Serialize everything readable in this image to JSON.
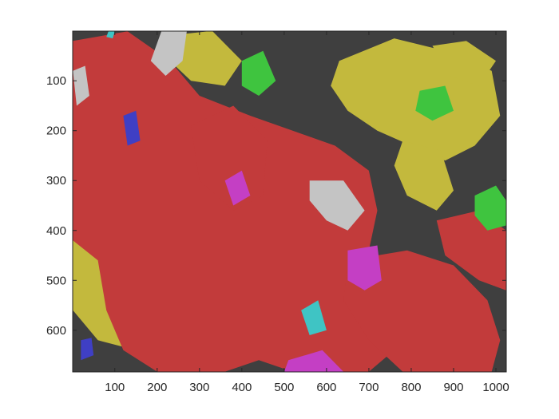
{
  "chart_data": {
    "type": "heatmap",
    "title": "",
    "xlabel": "",
    "ylabel": "",
    "xlim": [
      0.5,
      1024.5
    ],
    "ylim": [
      0.5,
      683.5
    ],
    "y_reversed": true,
    "x_ticks": [
      100,
      200,
      300,
      400,
      500,
      600,
      700,
      800,
      900,
      1000
    ],
    "y_ticks": [
      100,
      200,
      300,
      400,
      500,
      600
    ],
    "x_tick_labels": [
      "100",
      "200",
      "300",
      "400",
      "500",
      "600",
      "700",
      "800",
      "900",
      "1000"
    ],
    "y_tick_labels": [
      "100",
      "200",
      "300",
      "400",
      "500",
      "600"
    ],
    "grid": false,
    "legend": "none",
    "cluster_colors": {
      "dark_gray": "#3f3f3f",
      "red": "#c23b3b",
      "olive_yellow": "#c3b93d",
      "green": "#3fc43f",
      "light_gray": "#c4c4c4",
      "magenta": "#c43fc4",
      "cyan": "#3fc4c4",
      "blue": "#3f3fc4"
    },
    "regions": [
      {
        "color": "dark_gray",
        "points": [
          [
            1,
            1
          ],
          [
            1024,
            1
          ],
          [
            1024,
            683
          ],
          [
            1,
            683
          ]
        ]
      },
      {
        "color": "olive_yellow",
        "points": [
          [
            630,
            60
          ],
          [
            760,
            15
          ],
          [
            880,
            40
          ],
          [
            990,
            80
          ],
          [
            1010,
            170
          ],
          [
            950,
            230
          ],
          [
            880,
            260
          ],
          [
            800,
            230
          ],
          [
            720,
            200
          ],
          [
            650,
            160
          ],
          [
            610,
            110
          ]
        ]
      },
      {
        "color": "olive_yellow",
        "points": [
          [
            780,
            220
          ],
          [
            870,
            240
          ],
          [
            900,
            320
          ],
          [
            860,
            360
          ],
          [
            790,
            330
          ],
          [
            760,
            270
          ]
        ]
      },
      {
        "color": "olive_yellow",
        "points": [
          [
            220,
            10
          ],
          [
            330,
            0
          ],
          [
            400,
            60
          ],
          [
            360,
            110
          ],
          [
            280,
            100
          ],
          [
            230,
            60
          ]
        ]
      },
      {
        "color": "olive_yellow",
        "points": [
          [
            1,
            280
          ],
          [
            120,
            300
          ],
          [
            190,
            360
          ],
          [
            260,
            420
          ],
          [
            270,
            520
          ],
          [
            230,
            600
          ],
          [
            150,
            640
          ],
          [
            60,
            620
          ],
          [
            1,
            560
          ]
        ]
      },
      {
        "color": "olive_yellow",
        "points": [
          [
            850,
            30
          ],
          [
            930,
            20
          ],
          [
            1000,
            60
          ],
          [
            960,
            110
          ],
          [
            890,
            90
          ]
        ]
      },
      {
        "color": "red",
        "points": [
          [
            1,
            20
          ],
          [
            130,
            1
          ],
          [
            230,
            60
          ],
          [
            300,
            130
          ],
          [
            420,
            170
          ],
          [
            520,
            200
          ],
          [
            620,
            230
          ],
          [
            700,
            280
          ],
          [
            720,
            360
          ],
          [
            700,
            440
          ],
          [
            760,
            500
          ],
          [
            800,
            560
          ],
          [
            760,
            640
          ],
          [
            700,
            683
          ],
          [
            520,
            683
          ],
          [
            440,
            660
          ],
          [
            360,
            683
          ],
          [
            200,
            683
          ],
          [
            120,
            640
          ],
          [
            80,
            560
          ],
          [
            60,
            460
          ],
          [
            1,
            420
          ]
        ]
      },
      {
        "color": "red",
        "points": [
          [
            650,
            460
          ],
          [
            790,
            440
          ],
          [
            900,
            470
          ],
          [
            980,
            540
          ],
          [
            1010,
            620
          ],
          [
            990,
            683
          ],
          [
            780,
            683
          ],
          [
            700,
            620
          ],
          [
            640,
            540
          ]
        ]
      },
      {
        "color": "red",
        "points": [
          [
            860,
            380
          ],
          [
            960,
            360
          ],
          [
            1024,
            400
          ],
          [
            1024,
            520
          ],
          [
            960,
            500
          ],
          [
            880,
            450
          ]
        ]
      },
      {
        "color": "red",
        "points": [
          [
            280,
            190
          ],
          [
            380,
            150
          ],
          [
            460,
            220
          ],
          [
            450,
            330
          ],
          [
            380,
            360
          ],
          [
            300,
            300
          ]
        ]
      },
      {
        "color": "light_gray",
        "points": [
          [
            210,
            1
          ],
          [
            270,
            1
          ],
          [
            260,
            60
          ],
          [
            220,
            90
          ],
          [
            185,
            60
          ]
        ]
      },
      {
        "color": "light_gray",
        "points": [
          [
            560,
            300
          ],
          [
            640,
            300
          ],
          [
            690,
            360
          ],
          [
            650,
            400
          ],
          [
            600,
            380
          ],
          [
            560,
            340
          ]
        ]
      },
      {
        "color": "light_gray",
        "points": [
          [
            1,
            80
          ],
          [
            30,
            70
          ],
          [
            40,
            130
          ],
          [
            10,
            150
          ]
        ]
      },
      {
        "color": "green",
        "points": [
          [
            400,
            60
          ],
          [
            450,
            40
          ],
          [
            480,
            100
          ],
          [
            440,
            130
          ],
          [
            400,
            110
          ]
        ]
      },
      {
        "color": "green",
        "points": [
          [
            950,
            330
          ],
          [
            1000,
            310
          ],
          [
            1024,
            340
          ],
          [
            1024,
            390
          ],
          [
            980,
            400
          ],
          [
            950,
            370
          ]
        ]
      },
      {
        "color": "green",
        "points": [
          [
            820,
            120
          ],
          [
            880,
            110
          ],
          [
            900,
            160
          ],
          [
            850,
            180
          ],
          [
            810,
            160
          ]
        ]
      },
      {
        "color": "magenta",
        "points": [
          [
            650,
            440
          ],
          [
            720,
            430
          ],
          [
            730,
            500
          ],
          [
            690,
            520
          ],
          [
            650,
            500
          ]
        ]
      },
      {
        "color": "magenta",
        "points": [
          [
            510,
            660
          ],
          [
            590,
            640
          ],
          [
            640,
            683
          ],
          [
            500,
            683
          ]
        ]
      },
      {
        "color": "magenta",
        "points": [
          [
            360,
            300
          ],
          [
            400,
            280
          ],
          [
            420,
            330
          ],
          [
            380,
            350
          ]
        ]
      },
      {
        "color": "cyan",
        "points": [
          [
            540,
            560
          ],
          [
            580,
            540
          ],
          [
            600,
            600
          ],
          [
            560,
            610
          ]
        ]
      },
      {
        "color": "cyan",
        "points": [
          [
            85,
            1
          ],
          [
            100,
            1
          ],
          [
            95,
            15
          ],
          [
            80,
            12
          ]
        ]
      },
      {
        "color": "blue",
        "points": [
          [
            120,
            170
          ],
          [
            150,
            160
          ],
          [
            160,
            220
          ],
          [
            130,
            230
          ]
        ]
      },
      {
        "color": "blue",
        "points": [
          [
            20,
            620
          ],
          [
            45,
            615
          ],
          [
            50,
            650
          ],
          [
            20,
            660
          ]
        ]
      }
    ]
  }
}
